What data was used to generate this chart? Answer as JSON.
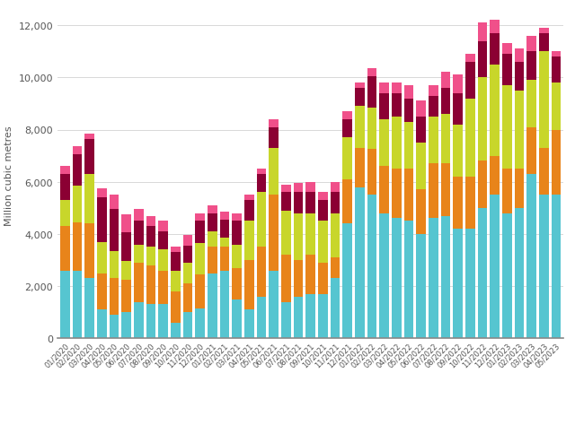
{
  "categories": [
    "01/2020",
    "02/2020",
    "03/2020",
    "04/2020",
    "05/2020",
    "06/2020",
    "07/2020",
    "08/2020",
    "09/2020",
    "10/2020",
    "11/2020",
    "12/2020",
    "01/2021",
    "02/2021",
    "03/2021",
    "04/2021",
    "05/2021",
    "06/2021",
    "07/2021",
    "08/2021",
    "09/2021",
    "10/2021",
    "11/2021",
    "12/2021",
    "01/2022",
    "02/2022",
    "03/2022",
    "04/2022",
    "05/2022",
    "06/2022",
    "07/2022",
    "08/2022",
    "09/2022",
    "10/2022",
    "11/2022",
    "12/2022",
    "01/2023",
    "02/2023",
    "03/2023",
    "04/2023",
    "05/2023"
  ],
  "America": [
    2600,
    2600,
    2300,
    1100,
    900,
    1000,
    1400,
    1300,
    1300,
    600,
    1000,
    1150,
    2500,
    2600,
    1500,
    1100,
    1600,
    2600,
    1400,
    1600,
    1700,
    1700,
    2300,
    4400,
    5800,
    5500,
    4800,
    4600,
    4500,
    4000,
    4600,
    4700,
    4200,
    4200,
    5000,
    5500,
    4800,
    5000,
    6300,
    5500,
    5500
  ],
  "Africa": [
    1700,
    1850,
    2100,
    1400,
    1400,
    1250,
    1500,
    1500,
    1300,
    1200,
    1100,
    1300,
    1000,
    900,
    1200,
    1900,
    1900,
    2900,
    1800,
    1400,
    1500,
    1200,
    800,
    1700,
    1500,
    1750,
    1800,
    1900,
    2000,
    1700,
    2100,
    2000,
    2000,
    2000,
    1800,
    1500,
    1700,
    1500,
    1800,
    1800,
    2500
  ],
  "Middle East": [
    1000,
    1400,
    1900,
    1200,
    1050,
    700,
    700,
    700,
    800,
    800,
    800,
    1200,
    600,
    350,
    900,
    1500,
    2100,
    1800,
    1700,
    1800,
    1600,
    1600,
    1700,
    1600,
    1600,
    1600,
    1800,
    2000,
    1800,
    1800,
    1800,
    1900,
    2000,
    3000,
    3200,
    3500,
    3200,
    3000,
    1800,
    3700,
    1800
  ],
  "Russia": [
    1000,
    1200,
    1350,
    1700,
    1600,
    1100,
    900,
    800,
    700,
    700,
    650,
    850,
    700,
    700,
    900,
    800,
    700,
    800,
    700,
    800,
    800,
    800,
    800,
    700,
    700,
    1200,
    1000,
    900,
    900,
    1000,
    800,
    1000,
    1200,
    1400,
    1400,
    1200,
    1200,
    1100,
    1100,
    700,
    1000
  ],
  "Other": [
    300,
    300,
    200,
    350,
    550,
    700,
    450,
    400,
    400,
    200,
    400,
    300,
    300,
    300,
    300,
    200,
    200,
    300,
    300,
    350,
    400,
    300,
    400,
    300,
    200,
    300,
    400,
    400,
    500,
    600,
    400,
    600,
    700,
    300,
    700,
    500,
    400,
    500,
    600,
    200,
    200
  ],
  "colors": {
    "America": "#56c5d0",
    "Africa": "#e8841a",
    "Middle East": "#c8d62b",
    "Russia": "#8b0033",
    "Other": "#f0508a"
  },
  "ylabel": "Million cubic metres",
  "ylim": [
    0,
    12500
  ],
  "yticks": [
    0,
    2000,
    4000,
    6000,
    8000,
    10000,
    12000
  ],
  "bg_color": "#ffffff",
  "grid_color": "#d8d8d8"
}
